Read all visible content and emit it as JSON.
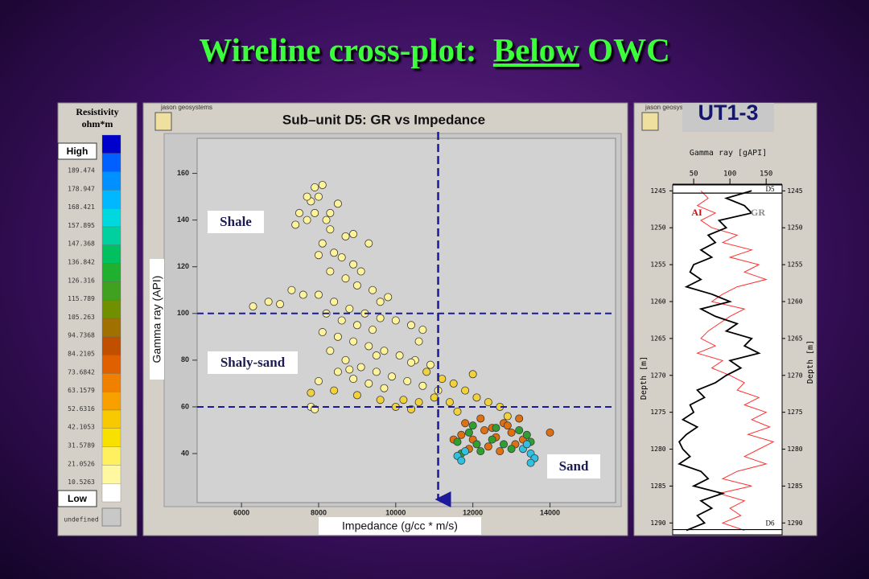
{
  "slide_title": {
    "lead": "Wireline cross-plot:",
    "underlined": "Below",
    "tail": "OWC"
  },
  "chart_data": [
    {
      "type": "scatter",
      "brand": "jason geosystems",
      "title": "Sub–unit D5: GR vs Impedance",
      "x_label": "Impedance (g/cc * m/s)",
      "y_label": "Gamma ray (API)",
      "xlim": [
        4850,
        15700
      ],
      "ylim": [
        19,
        175
      ],
      "xticks": [
        6000,
        8000,
        10000,
        12000,
        14000
      ],
      "yticks": [
        40,
        60,
        80,
        100,
        120,
        140,
        160
      ],
      "reference_lines": {
        "x": [
          11100
        ],
        "y": [
          100,
          60
        ],
        "color": "#1a1a9a"
      },
      "annotations": [
        "Shale",
        "Shaly-sand",
        "Sand"
      ],
      "series": [
        {
          "color": "#fff39a",
          "x": [
            7900,
            8100,
            8000,
            7800,
            8500,
            7900,
            8200,
            8300,
            7700,
            8700,
            8900,
            9300,
            8100,
            8400,
            8600,
            8900,
            9100,
            8000,
            8300,
            8700,
            9000,
            9400,
            9800,
            6300,
            6700,
            7000,
            7300,
            7600,
            8000,
            8400,
            8800,
            9200,
            9600,
            10000,
            10400,
            10700,
            8200,
            8600,
            9000,
            9400,
            8100,
            8500,
            8900,
            9300,
            9700,
            10100,
            10500,
            10900,
            8300,
            8700,
            9100,
            9500,
            9900,
            10300,
            10700,
            11100,
            8500,
            8900,
            9300,
            9700,
            8000,
            7800,
            7900,
            8800,
            9500,
            10400,
            7400,
            7500,
            7700,
            8300,
            9600,
            10600
          ],
          "values": [
            154,
            155,
            150,
            148,
            147,
            143,
            140,
            136,
            140,
            133,
            134,
            130,
            130,
            126,
            124,
            121,
            118,
            125,
            118,
            115,
            112,
            110,
            107,
            103,
            105,
            104,
            110,
            108,
            108,
            105,
            102,
            100,
            98,
            97,
            95,
            93,
            100,
            97,
            95,
            93,
            92,
            90,
            88,
            86,
            84,
            82,
            80,
            78,
            84,
            80,
            77,
            75,
            73,
            71,
            69,
            67,
            75,
            72,
            70,
            68,
            71,
            60,
            59,
            76,
            82,
            79,
            138,
            143,
            150,
            143,
            105,
            88
          ]
        },
        {
          "color": "#f2d23a",
          "x": [
            10800,
            11200,
            11500,
            11800,
            12100,
            12400,
            12700,
            11000,
            11400,
            10200,
            10600,
            11600,
            12900,
            12000,
            7800,
            8400,
            9000,
            9600,
            10000,
            10400
          ],
          "values": [
            75,
            72,
            70,
            67,
            64,
            62,
            60,
            64,
            62,
            63,
            62,
            58,
            56,
            74,
            66,
            67,
            65,
            63,
            60,
            59
          ]
        },
        {
          "color": "#e0700f",
          "x": [
            11800,
            12200,
            12500,
            12800,
            13200,
            11700,
            12000,
            12300,
            12600,
            13000,
            13300,
            11900,
            12400,
            12700,
            13100,
            14000,
            11500,
            12900
          ],
          "values": [
            53,
            55,
            51,
            53,
            55,
            48,
            46,
            50,
            47,
            49,
            46,
            42,
            43,
            41,
            44,
            49,
            46,
            52
          ]
        },
        {
          "color": "#2fa030",
          "x": [
            11600,
            11900,
            12100,
            12500,
            12800,
            13200,
            13400,
            11700,
            12200,
            13000,
            12600,
            13500,
            12000
          ],
          "values": [
            45,
            49,
            44,
            46,
            44,
            50,
            48,
            40,
            41,
            42,
            51,
            45,
            52
          ]
        },
        {
          "color": "#30c0e0",
          "x": [
            11600,
            11800,
            13300,
            13500,
            13600,
            13500,
            11700,
            13400
          ],
          "values": [
            39,
            41,
            42,
            40,
            38,
            36,
            37,
            44
          ]
        }
      ],
      "color_scale": {
        "title": [
          "Resistivity",
          "ohm*m"
        ],
        "high": "High",
        "low": "Low",
        "labels": [
          189.474,
          178.947,
          168.421,
          157.895,
          147.368,
          136.842,
          126.316,
          115.789,
          105.263,
          94.7368,
          84.2105,
          73.6842,
          63.1579,
          52.6316,
          42.1053,
          31.5789,
          21.0526,
          10.5263
        ],
        "undefined": "undefined",
        "colors": [
          "#0000cc",
          "#0060ff",
          "#0090ff",
          "#00b8ff",
          "#00d8e0",
          "#00d0a0",
          "#00c060",
          "#20b030",
          "#40a020",
          "#709000",
          "#a07000",
          "#c05000",
          "#e06000",
          "#f08000",
          "#f8a000",
          "#f8c800",
          "#f8e000",
          "#fff060",
          "#fff8a0",
          "#ffffff"
        ]
      }
    },
    {
      "type": "log",
      "brand": "jason geosystems",
      "well": "UT1-3",
      "x_label": "Gamma ray [gAPI]",
      "y_label": "Depth [m]",
      "xlim": [
        21,
        172
      ],
      "xticks": [
        50,
        100,
        150
      ],
      "ylim": [
        1244.2,
        1291.6
      ],
      "yticks": [
        1245,
        1250,
        1255,
        1260,
        1265,
        1270,
        1275,
        1280,
        1285,
        1290
      ],
      "depth": [
        1245,
        1246,
        1247,
        1248,
        1249,
        1250,
        1251,
        1252,
        1253,
        1254,
        1255,
        1256,
        1257,
        1258,
        1259,
        1260,
        1261,
        1262,
        1263,
        1264,
        1265,
        1266,
        1267,
        1268,
        1269,
        1270,
        1271,
        1272,
        1273,
        1274,
        1275,
        1276,
        1277,
        1278,
        1279,
        1280,
        1281,
        1282,
        1283,
        1284,
        1285,
        1286,
        1287,
        1288,
        1289,
        1290,
        1291
      ],
      "series": [
        {
          "name": "AI",
          "color": "#ff3030",
          "label_color": "#cc1010",
          "values": [
            60,
            70,
            55,
            80,
            60,
            75,
            110,
            90,
            130,
            100,
            140,
            120,
            150,
            110,
            90,
            75,
            120,
            100,
            85,
            70,
            60,
            80,
            55,
            90,
            75,
            100,
            120,
            110,
            140,
            120,
            150,
            130,
            155,
            125,
            160,
            140,
            120,
            150,
            110,
            90,
            130,
            85,
            120,
            100,
            115,
            90,
            120
          ]
        },
        {
          "name": "GR",
          "color": "#000000",
          "label_color": "#8a8a8a",
          "values": [
            130,
            95,
            120,
            130,
            85,
            95,
            70,
            80,
            60,
            75,
            50,
            45,
            60,
            40,
            75,
            100,
            60,
            80,
            110,
            95,
            130,
            120,
            140,
            100,
            115,
            95,
            80,
            55,
            65,
            45,
            50,
            35,
            55,
            40,
            30,
            35,
            45,
            30,
            60,
            70,
            50,
            90,
            60,
            75,
            55,
            65,
            40
          ]
        }
      ],
      "markers": [
        {
          "name": "D5",
          "depth": 1245.3
        },
        {
          "name": "D6",
          "depth": 1290.9
        }
      ]
    }
  ]
}
